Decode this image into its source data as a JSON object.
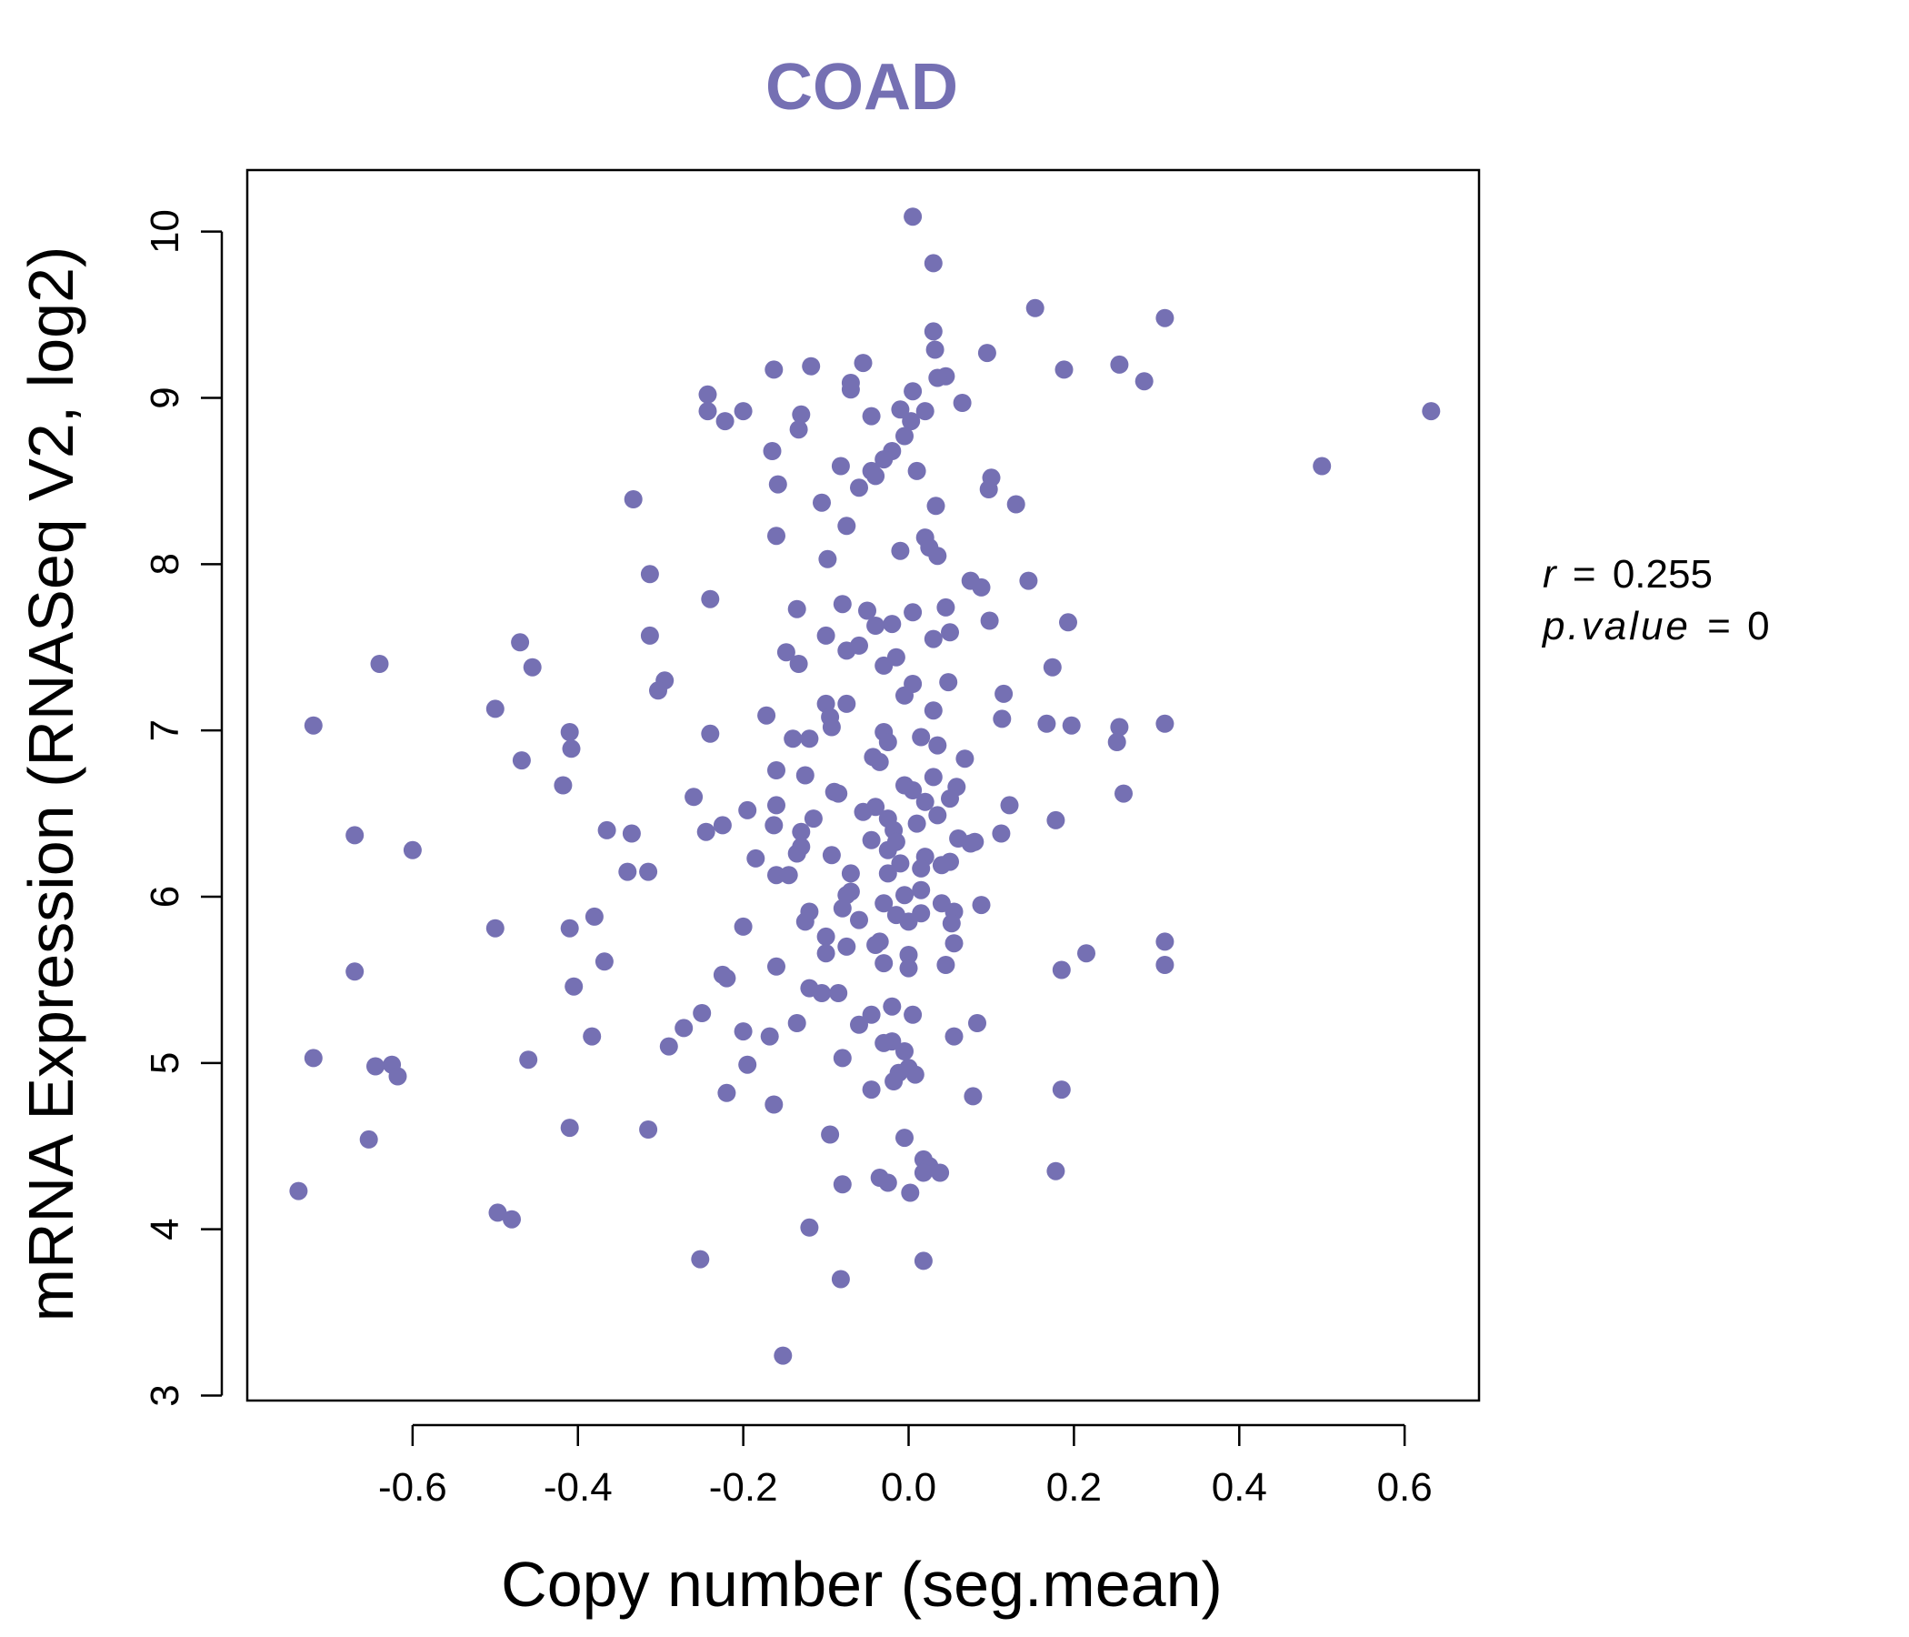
{
  "chart_data": {
    "type": "scatter",
    "title": "COAD",
    "xlabel": "Copy number (seg.mean)",
    "ylabel": "mRNA Expression (RNASeq V2, log2)",
    "xlim": [
      -0.8,
      0.69
    ],
    "ylim": [
      2.97,
      10.37
    ],
    "xticks": [
      -0.6,
      -0.4,
      -0.2,
      0.0,
      0.2,
      0.4,
      0.6
    ],
    "xtick_labels": [
      "-0.6",
      "-0.4",
      "-0.2",
      "0.0",
      "0.2",
      "0.4",
      "0.6"
    ],
    "yticks": [
      3,
      4,
      5,
      6,
      7,
      8,
      9,
      10
    ],
    "ytick_labels": [
      "3",
      "4",
      "5",
      "6",
      "7",
      "8",
      "9",
      "10"
    ],
    "point_color": "#7570b3",
    "stats": {
      "r_label": "r",
      "r_value": "0.255",
      "p_label": "p.value",
      "p_value": "0",
      "eq": "="
    },
    "points": [
      [
        0.005,
        10.09
      ],
      [
        0.03,
        9.81
      ],
      [
        0.153,
        9.54
      ],
      [
        0.31,
        9.48
      ],
      [
        0.03,
        9.4
      ],
      [
        0.032,
        9.29
      ],
      [
        0.095,
        9.27
      ],
      [
        -0.055,
        9.21
      ],
      [
        0.255,
        9.2
      ],
      [
        -0.118,
        9.19
      ],
      [
        -0.163,
        9.17
      ],
      [
        0.188,
        9.17
      ],
      [
        0.045,
        9.13
      ],
      [
        0.035,
        9.12
      ],
      [
        0.285,
        9.1
      ],
      [
        -0.07,
        9.09
      ],
      [
        -0.07,
        9.05
      ],
      [
        0.005,
        9.04
      ],
      [
        -0.243,
        9.02
      ],
      [
        0.065,
        8.97
      ],
      [
        -0.2,
        8.92
      ],
      [
        -0.243,
        8.92
      ],
      [
        -0.01,
        8.93
      ],
      [
        0.02,
        8.92
      ],
      [
        -0.13,
        8.9
      ],
      [
        -0.045,
        8.89
      ],
      [
        0.632,
        8.92
      ],
      [
        -0.222,
        8.86
      ],
      [
        0.003,
        8.86
      ],
      [
        -0.133,
        8.81
      ],
      [
        -0.005,
        8.77
      ],
      [
        -0.02,
        8.68
      ],
      [
        -0.165,
        8.68
      ],
      [
        -0.03,
        8.63
      ],
      [
        -0.082,
        8.59
      ],
      [
        0.5,
        8.59
      ],
      [
        -0.045,
        8.56
      ],
      [
        0.01,
        8.56
      ],
      [
        -0.04,
        8.53
      ],
      [
        0.1,
        8.52
      ],
      [
        -0.158,
        8.48
      ],
      [
        -0.06,
        8.46
      ],
      [
        0.097,
        8.45
      ],
      [
        -0.333,
        8.39
      ],
      [
        -0.105,
        8.37
      ],
      [
        0.033,
        8.35
      ],
      [
        0.13,
        8.36
      ],
      [
        -0.075,
        8.23
      ],
      [
        -0.16,
        8.17
      ],
      [
        0.02,
        8.16
      ],
      [
        0.025,
        8.1
      ],
      [
        -0.01,
        8.08
      ],
      [
        0.035,
        8.05
      ],
      [
        -0.098,
        8.03
      ],
      [
        -0.313,
        7.94
      ],
      [
        0.075,
        7.9
      ],
      [
        0.145,
        7.9
      ],
      [
        0.088,
        7.86
      ],
      [
        -0.24,
        7.79
      ],
      [
        -0.08,
        7.76
      ],
      [
        0.045,
        7.74
      ],
      [
        -0.135,
        7.73
      ],
      [
        -0.05,
        7.72
      ],
      [
        0.005,
        7.71
      ],
      [
        0.098,
        7.66
      ],
      [
        0.193,
        7.65
      ],
      [
        -0.02,
        7.64
      ],
      [
        -0.04,
        7.63
      ],
      [
        0.05,
        7.59
      ],
      [
        -0.313,
        7.57
      ],
      [
        -0.1,
        7.57
      ],
      [
        0.03,
        7.55
      ],
      [
        -0.47,
        7.53
      ],
      [
        -0.06,
        7.51
      ],
      [
        -0.075,
        7.48
      ],
      [
        -0.148,
        7.47
      ],
      [
        -0.015,
        7.44
      ],
      [
        -0.133,
        7.4
      ],
      [
        -0.03,
        7.39
      ],
      [
        0.174,
        7.38
      ],
      [
        -0.64,
        7.4
      ],
      [
        -0.455,
        7.38
      ],
      [
        -0.295,
        7.3
      ],
      [
        -0.303,
        7.24
      ],
      [
        0.005,
        7.28
      ],
      [
        0.048,
        7.29
      ],
      [
        0.115,
        7.22
      ],
      [
        -0.005,
        7.21
      ],
      [
        -0.1,
        7.16
      ],
      [
        -0.075,
        7.16
      ],
      [
        -0.5,
        7.13
      ],
      [
        0.03,
        7.12
      ],
      [
        -0.172,
        7.09
      ],
      [
        -0.095,
        7.08
      ],
      [
        0.113,
        7.07
      ],
      [
        -0.72,
        7.03
      ],
      [
        0.167,
        7.04
      ],
      [
        0.197,
        7.03
      ],
      [
        0.255,
        7.02
      ],
      [
        0.31,
        7.04
      ],
      [
        -0.093,
        7.02
      ],
      [
        -0.41,
        6.99
      ],
      [
        -0.24,
        6.98
      ],
      [
        -0.03,
        6.99
      ],
      [
        -0.14,
        6.95
      ],
      [
        -0.12,
        6.95
      ],
      [
        0.015,
        6.96
      ],
      [
        -0.025,
        6.93
      ],
      [
        0.252,
        6.93
      ],
      [
        0.035,
        6.91
      ],
      [
        -0.408,
        6.89
      ],
      [
        -0.043,
        6.84
      ],
      [
        -0.468,
        6.82
      ],
      [
        0.068,
        6.83
      ],
      [
        -0.035,
        6.81
      ],
      [
        -0.16,
        6.76
      ],
      [
        -0.125,
        6.73
      ],
      [
        0.03,
        6.72
      ],
      [
        -0.418,
        6.67
      ],
      [
        -0.005,
        6.67
      ],
      [
        0.005,
        6.64
      ],
      [
        0.058,
        6.66
      ],
      [
        -0.09,
        6.63
      ],
      [
        -0.085,
        6.62
      ],
      [
        0.26,
        6.62
      ],
      [
        -0.26,
        6.6
      ],
      [
        0.05,
        6.59
      ],
      [
        0.02,
        6.57
      ],
      [
        0.122,
        6.55
      ],
      [
        -0.16,
        6.55
      ],
      [
        -0.04,
        6.54
      ],
      [
        -0.195,
        6.52
      ],
      [
        -0.055,
        6.51
      ],
      [
        -0.115,
        6.47
      ],
      [
        0.035,
        6.49
      ],
      [
        0.178,
        6.46
      ],
      [
        -0.025,
        6.47
      ],
      [
        -0.225,
        6.43
      ],
      [
        -0.163,
        6.43
      ],
      [
        0.01,
        6.44
      ],
      [
        -0.365,
        6.4
      ],
      [
        -0.245,
        6.39
      ],
      [
        -0.13,
        6.39
      ],
      [
        -0.018,
        6.4
      ],
      [
        -0.335,
        6.38
      ],
      [
        -0.67,
        6.37
      ],
      [
        0.112,
        6.38
      ],
      [
        0.06,
        6.35
      ],
      [
        -0.045,
        6.34
      ],
      [
        -0.015,
        6.33
      ],
      [
        0.075,
        6.32
      ],
      [
        0.08,
        6.33
      ],
      [
        -0.13,
        6.3
      ],
      [
        -0.025,
        6.28
      ],
      [
        -0.6,
        6.28
      ],
      [
        -0.135,
        6.26
      ],
      [
        -0.093,
        6.25
      ],
      [
        0.02,
        6.24
      ],
      [
        -0.185,
        6.23
      ],
      [
        0.05,
        6.21
      ],
      [
        -0.01,
        6.2
      ],
      [
        0.04,
        6.19
      ],
      [
        0.015,
        6.17
      ],
      [
        -0.34,
        6.15
      ],
      [
        -0.315,
        6.15
      ],
      [
        -0.16,
        6.13
      ],
      [
        -0.145,
        6.13
      ],
      [
        -0.07,
        6.14
      ],
      [
        -0.025,
        6.14
      ],
      [
        0.015,
        6.04
      ],
      [
        -0.07,
        6.03
      ],
      [
        -0.075,
        6.01
      ],
      [
        -0.005,
        6.01
      ],
      [
        0.04,
        5.96
      ],
      [
        0.088,
        5.95
      ],
      [
        -0.03,
        5.96
      ],
      [
        -0.08,
        5.93
      ],
      [
        -0.12,
        5.91
      ],
      [
        0.055,
        5.91
      ],
      [
        0.015,
        5.9
      ],
      [
        -0.015,
        5.89
      ],
      [
        -0.38,
        5.88
      ],
      [
        -0.125,
        5.85
      ],
      [
        -0.06,
        5.86
      ],
      [
        0.0,
        5.85
      ],
      [
        0.052,
        5.84
      ],
      [
        -0.5,
        5.81
      ],
      [
        -0.41,
        5.81
      ],
      [
        -0.2,
        5.82
      ],
      [
        -0.1,
        5.76
      ],
      [
        -0.035,
        5.73
      ],
      [
        -0.04,
        5.71
      ],
      [
        -0.075,
        5.7
      ],
      [
        0.055,
        5.72
      ],
      [
        0.31,
        5.73
      ],
      [
        -0.1,
        5.66
      ],
      [
        0.215,
        5.66
      ],
      [
        0.0,
        5.65
      ],
      [
        -0.368,
        5.61
      ],
      [
        -0.03,
        5.6
      ],
      [
        0.0,
        5.57
      ],
      [
        0.045,
        5.59
      ],
      [
        0.31,
        5.59
      ],
      [
        -0.16,
        5.58
      ],
      [
        -0.67,
        5.55
      ],
      [
        0.185,
        5.56
      ],
      [
        -0.225,
        5.53
      ],
      [
        -0.22,
        5.51
      ],
      [
        -0.405,
        5.46
      ],
      [
        -0.12,
        5.45
      ],
      [
        -0.105,
        5.42
      ],
      [
        -0.085,
        5.42
      ],
      [
        -0.02,
        5.34
      ],
      [
        -0.045,
        5.29
      ],
      [
        0.005,
        5.29
      ],
      [
        -0.25,
        5.3
      ],
      [
        -0.135,
        5.24
      ],
      [
        0.083,
        5.24
      ],
      [
        -0.06,
        5.23
      ],
      [
        -0.272,
        5.21
      ],
      [
        -0.2,
        5.19
      ],
      [
        -0.383,
        5.16
      ],
      [
        -0.168,
        5.16
      ],
      [
        -0.02,
        5.13
      ],
      [
        -0.03,
        5.12
      ],
      [
        0.055,
        5.16
      ],
      [
        -0.29,
        5.1
      ],
      [
        -0.005,
        5.07
      ],
      [
        -0.72,
        5.03
      ],
      [
        -0.08,
        5.03
      ],
      [
        -0.46,
        5.02
      ],
      [
        -0.195,
        4.99
      ],
      [
        -0.625,
        4.99
      ],
      [
        -0.645,
        4.98
      ],
      [
        0.0,
        4.97
      ],
      [
        -0.012,
        4.94
      ],
      [
        0.008,
        4.93
      ],
      [
        -0.618,
        4.92
      ],
      [
        -0.018,
        4.89
      ],
      [
        -0.22,
        4.82
      ],
      [
        -0.045,
        4.84
      ],
      [
        0.185,
        4.84
      ],
      [
        0.078,
        4.8
      ],
      [
        -0.163,
        4.75
      ],
      [
        -0.41,
        4.61
      ],
      [
        -0.315,
        4.6
      ],
      [
        -0.095,
        4.57
      ],
      [
        -0.005,
        4.55
      ],
      [
        -0.653,
        4.54
      ],
      [
        0.018,
        4.42
      ],
      [
        0.025,
        4.38
      ],
      [
        0.018,
        4.34
      ],
      [
        0.038,
        4.34
      ],
      [
        0.178,
        4.35
      ],
      [
        -0.035,
        4.31
      ],
      [
        -0.025,
        4.28
      ],
      [
        -0.08,
        4.27
      ],
      [
        0.002,
        4.22
      ],
      [
        -0.738,
        4.23
      ],
      [
        -0.497,
        4.1
      ],
      [
        -0.48,
        4.06
      ],
      [
        -0.12,
        4.01
      ],
      [
        -0.252,
        3.82
      ],
      [
        0.018,
        3.81
      ],
      [
        -0.082,
        3.7
      ],
      [
        -0.152,
        3.24
      ]
    ]
  }
}
